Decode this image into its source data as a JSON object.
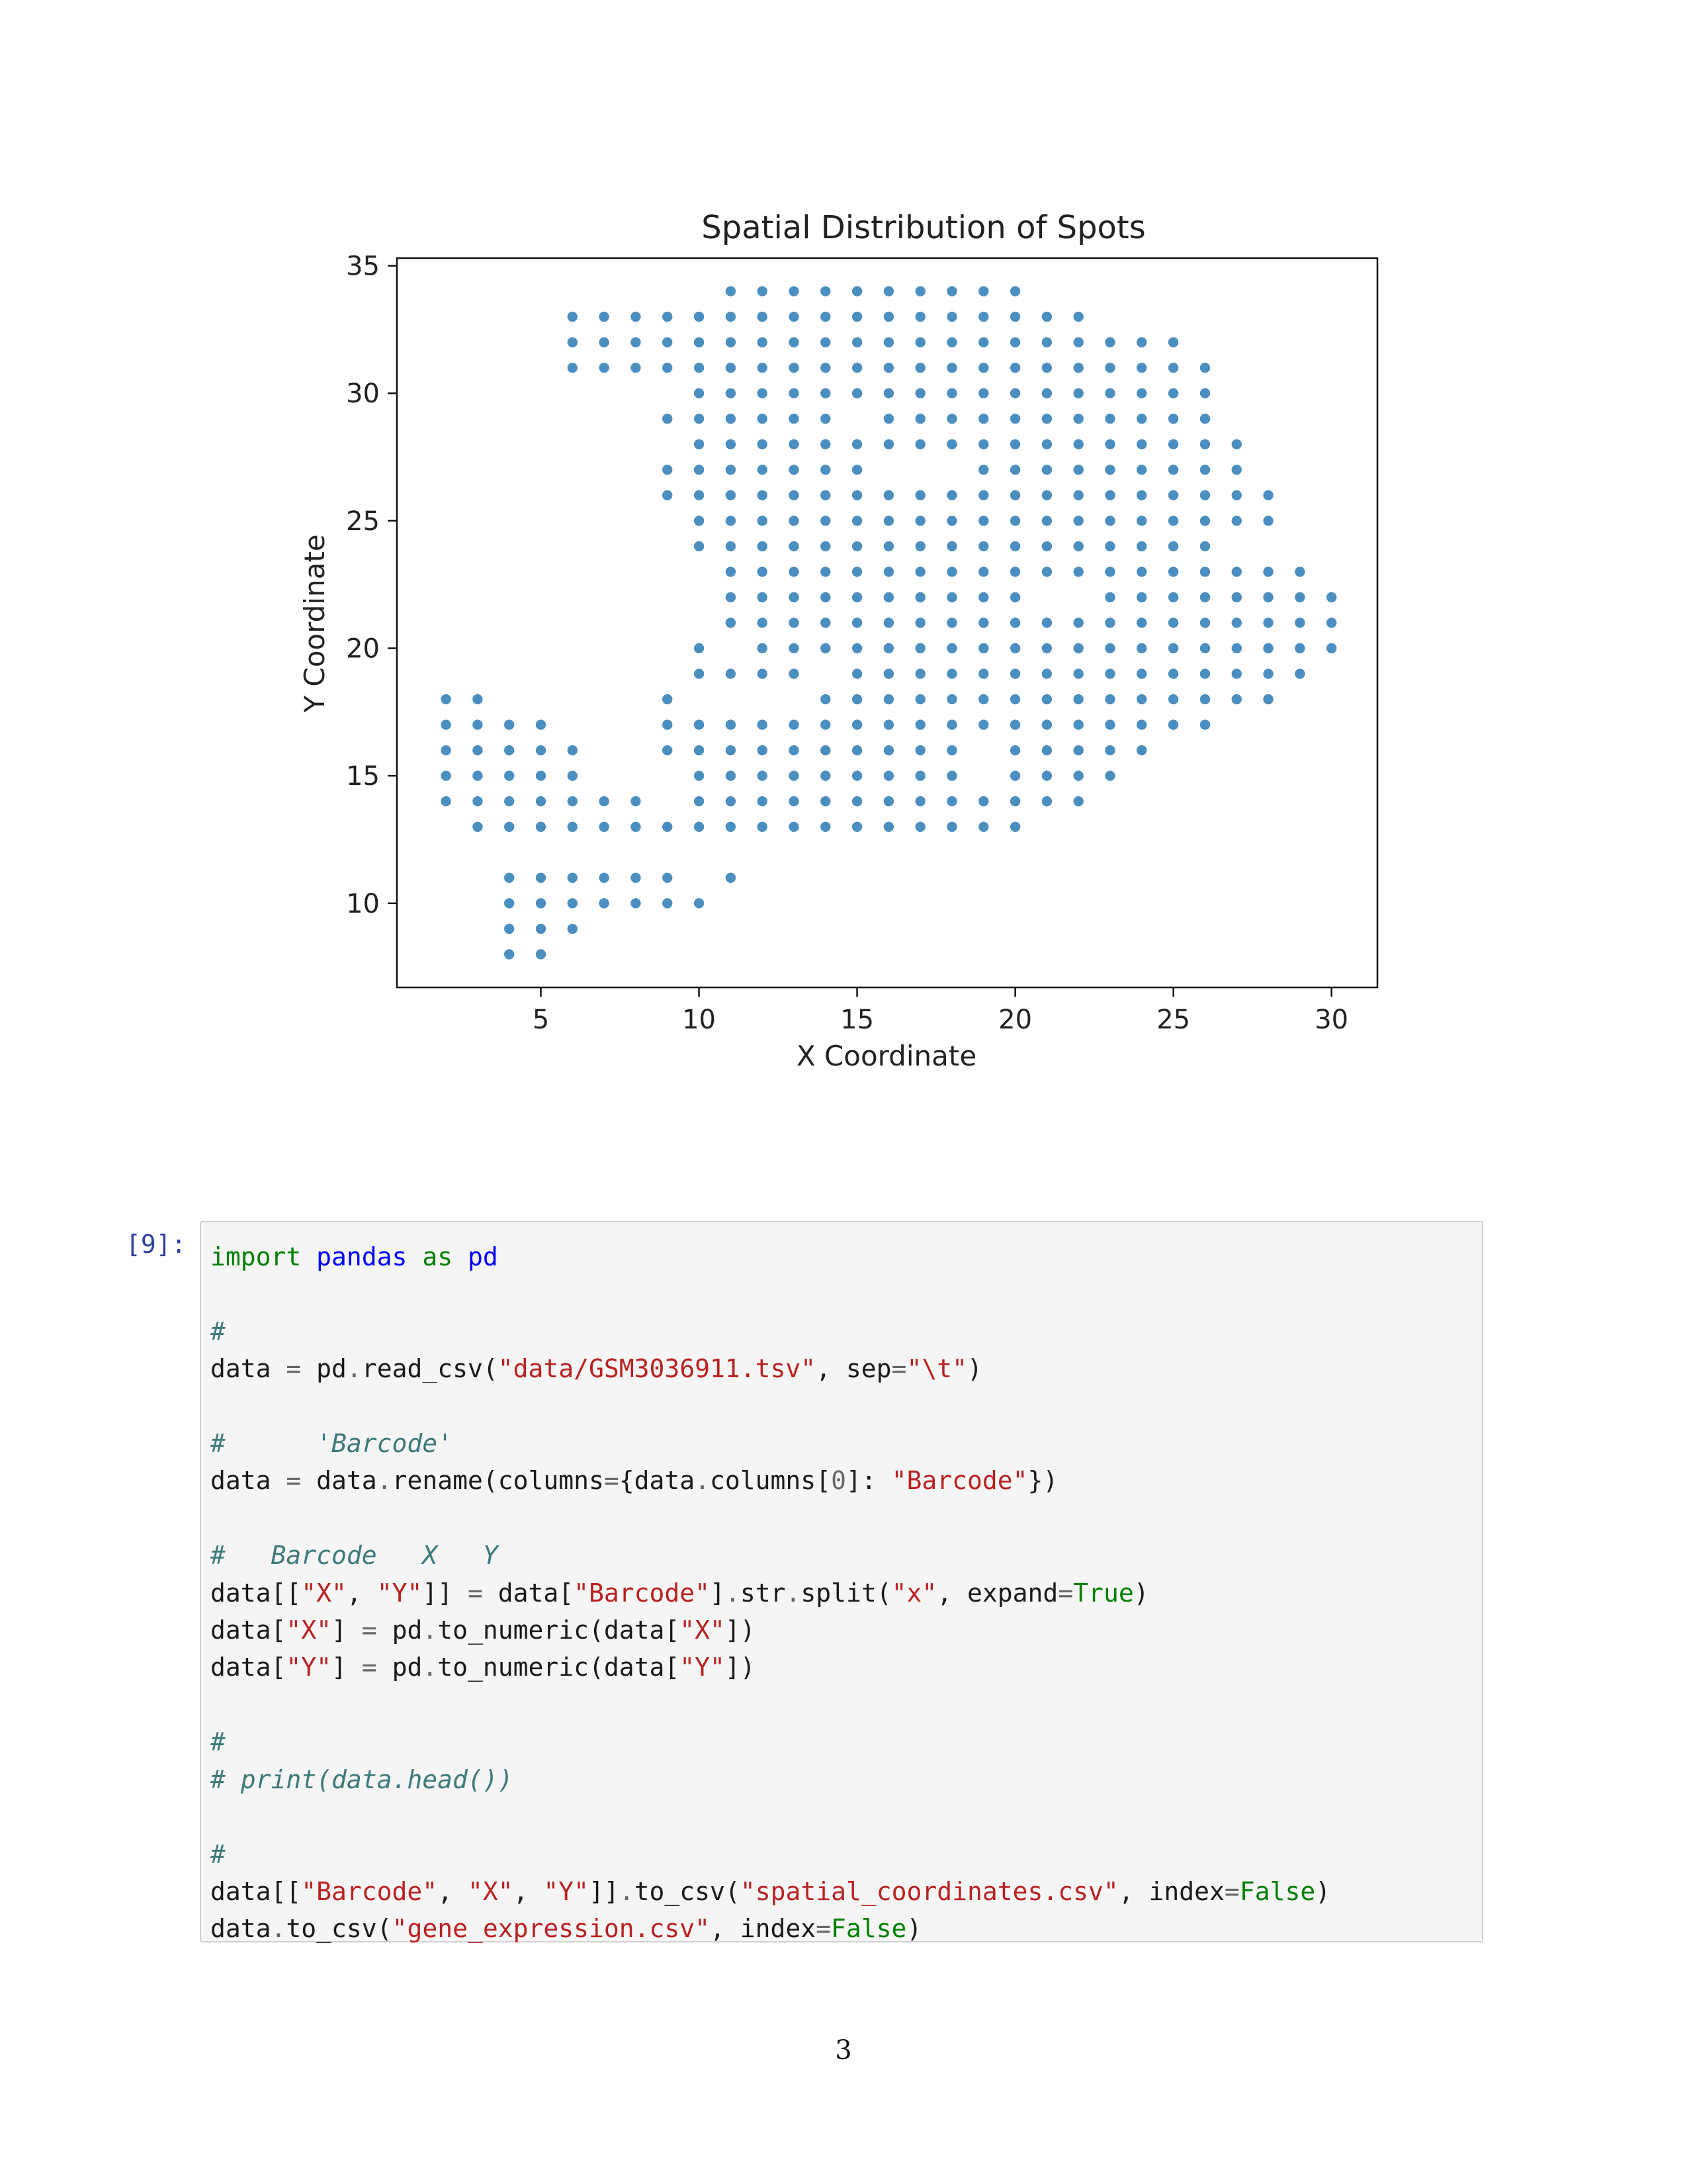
{
  "chart_data": {
    "type": "scatter",
    "title": "Spatial Distribution of Spots",
    "xlabel": "X Coordinate",
    "ylabel": "Y Coordinate",
    "xlim": [
      0.45,
      31.45
    ],
    "ylim": [
      6.7,
      35.3
    ],
    "xticks": [
      5,
      10,
      15,
      20,
      25,
      30
    ],
    "yticks": [
      10,
      15,
      20,
      25,
      30,
      35
    ],
    "grid": false,
    "point_color": "#4a8fc0",
    "rows": [
      {
        "y": 34,
        "xs": [
          [
            11,
            20
          ]
        ]
      },
      {
        "y": 33,
        "xs": [
          [
            6,
            22
          ]
        ]
      },
      {
        "y": 32,
        "xs": [
          [
            6,
            25
          ]
        ]
      },
      {
        "y": 31,
        "xs": [
          [
            6,
            26
          ]
        ]
      },
      {
        "y": 30,
        "xs": [
          [
            10,
            26
          ]
        ]
      },
      {
        "y": 29,
        "xs": [
          [
            9,
            14
          ],
          [
            16,
            26
          ]
        ]
      },
      {
        "y": 28,
        "xs": [
          [
            10,
            27
          ]
        ]
      },
      {
        "y": 27,
        "xs": [
          [
            9,
            15
          ],
          [
            19,
            27
          ]
        ]
      },
      {
        "y": 26,
        "xs": [
          [
            9,
            28
          ]
        ]
      },
      {
        "y": 25,
        "xs": [
          [
            10,
            28
          ]
        ]
      },
      {
        "y": 24,
        "xs": [
          [
            10,
            26
          ]
        ]
      },
      {
        "y": 23,
        "xs": [
          [
            11,
            29
          ]
        ]
      },
      {
        "y": 22,
        "xs": [
          [
            11,
            20
          ],
          [
            23,
            30
          ]
        ]
      },
      {
        "y": 21,
        "xs": [
          [
            11,
            30
          ]
        ]
      },
      {
        "y": 20,
        "xs": [
          [
            10,
            10
          ],
          [
            12,
            30
          ]
        ]
      },
      {
        "y": 19,
        "xs": [
          [
            10,
            13
          ],
          [
            15,
            29
          ]
        ]
      },
      {
        "y": 18,
        "xs": [
          [
            2,
            3
          ],
          [
            9,
            9
          ],
          [
            14,
            28
          ]
        ]
      },
      {
        "y": 17,
        "xs": [
          [
            2,
            5
          ],
          [
            9,
            26
          ]
        ]
      },
      {
        "y": 16,
        "xs": [
          [
            2,
            6
          ],
          [
            9,
            18
          ],
          [
            20,
            24
          ]
        ]
      },
      {
        "y": 15,
        "xs": [
          [
            2,
            6
          ],
          [
            10,
            18
          ],
          [
            20,
            23
          ]
        ]
      },
      {
        "y": 14,
        "xs": [
          [
            2,
            8
          ],
          [
            10,
            22
          ]
        ]
      },
      {
        "y": 13,
        "xs": [
          [
            3,
            20
          ]
        ]
      },
      {
        "y": 11,
        "xs": [
          [
            4,
            9
          ],
          [
            11,
            11
          ]
        ]
      },
      {
        "y": 10,
        "xs": [
          [
            4,
            10
          ]
        ]
      },
      {
        "y": 9,
        "xs": [
          [
            4,
            6
          ]
        ]
      },
      {
        "y": 8,
        "xs": [
          [
            4,
            5
          ]
        ]
      }
    ]
  },
  "cell": {
    "prompt": "[9]:",
    "lines": [
      [
        [
          "kw",
          "import"
        ],
        [
          "t",
          " "
        ],
        [
          "mod",
          "pandas"
        ],
        [
          "t",
          " "
        ],
        [
          "kw",
          "as"
        ],
        [
          "t",
          " "
        ],
        [
          "mod",
          "pd"
        ]
      ],
      [],
      [
        [
          "cm",
          "#"
        ]
      ],
      [
        [
          "t",
          "data "
        ],
        [
          "op",
          "="
        ],
        [
          "t",
          " pd"
        ],
        [
          "op",
          "."
        ],
        [
          "t",
          "read_csv("
        ],
        [
          "str",
          "\"data/GSM3036911.tsv\""
        ],
        [
          "t",
          ", sep"
        ],
        [
          "op",
          "="
        ],
        [
          "str",
          "\"\\t\""
        ],
        [
          "t",
          ")"
        ]
      ],
      [],
      [
        [
          "cm",
          "#      'Barcode'"
        ]
      ],
      [
        [
          "t",
          "data "
        ],
        [
          "op",
          "="
        ],
        [
          "t",
          " data"
        ],
        [
          "op",
          "."
        ],
        [
          "t",
          "rename(columns"
        ],
        [
          "op",
          "="
        ],
        [
          "t",
          "{data"
        ],
        [
          "op",
          "."
        ],
        [
          "t",
          "columns["
        ],
        [
          "num",
          "0"
        ],
        [
          "t",
          "]: "
        ],
        [
          "str",
          "\"Barcode\""
        ],
        [
          "t",
          "})"
        ]
      ],
      [],
      [
        [
          "cm",
          "#   Barcode   X   Y"
        ]
      ],
      [
        [
          "t",
          "data[["
        ],
        [
          "str",
          "\"X\""
        ],
        [
          "t",
          ", "
        ],
        [
          "str",
          "\"Y\""
        ],
        [
          "t",
          "]] "
        ],
        [
          "op",
          "="
        ],
        [
          "t",
          " data["
        ],
        [
          "str",
          "\"Barcode\""
        ],
        [
          "t",
          "]"
        ],
        [
          "op",
          "."
        ],
        [
          "t",
          "str"
        ],
        [
          "op",
          "."
        ],
        [
          "t",
          "split("
        ],
        [
          "str",
          "\"x\""
        ],
        [
          "t",
          ", expand"
        ],
        [
          "op",
          "="
        ],
        [
          "kw",
          "True"
        ],
        [
          "t",
          ")"
        ]
      ],
      [
        [
          "t",
          "data["
        ],
        [
          "str",
          "\"X\""
        ],
        [
          "t",
          "] "
        ],
        [
          "op",
          "="
        ],
        [
          "t",
          " pd"
        ],
        [
          "op",
          "."
        ],
        [
          "t",
          "to_numeric(data["
        ],
        [
          "str",
          "\"X\""
        ],
        [
          "t",
          "])"
        ]
      ],
      [
        [
          "t",
          "data["
        ],
        [
          "str",
          "\"Y\""
        ],
        [
          "t",
          "] "
        ],
        [
          "op",
          "="
        ],
        [
          "t",
          " pd"
        ],
        [
          "op",
          "."
        ],
        [
          "t",
          "to_numeric(data["
        ],
        [
          "str",
          "\"Y\""
        ],
        [
          "t",
          "])"
        ]
      ],
      [],
      [
        [
          "cm",
          "#"
        ]
      ],
      [
        [
          "cm",
          "# print(data.head())"
        ]
      ],
      [],
      [
        [
          "cm",
          "#"
        ]
      ],
      [
        [
          "t",
          "data[["
        ],
        [
          "str",
          "\"Barcode\""
        ],
        [
          "t",
          ", "
        ],
        [
          "str",
          "\"X\""
        ],
        [
          "t",
          ", "
        ],
        [
          "str",
          "\"Y\""
        ],
        [
          "t",
          "]]"
        ],
        [
          "op",
          "."
        ],
        [
          "t",
          "to_csv("
        ],
        [
          "str",
          "\"spatial_coordinates.csv\""
        ],
        [
          "t",
          ", index"
        ],
        [
          "op",
          "="
        ],
        [
          "kw",
          "False"
        ],
        [
          "t",
          ")"
        ]
      ],
      [
        [
          "t",
          "data"
        ],
        [
          "op",
          "."
        ],
        [
          "t",
          "to_csv("
        ],
        [
          "str",
          "\"gene_expression.csv\""
        ],
        [
          "t",
          ", index"
        ],
        [
          "op",
          "="
        ],
        [
          "kw",
          "False"
        ],
        [
          "t",
          ")"
        ]
      ]
    ]
  },
  "page_number": "3"
}
